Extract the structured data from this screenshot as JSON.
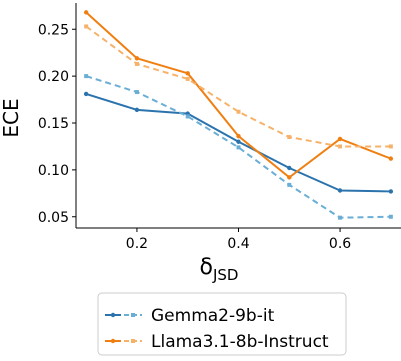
{
  "chart_data": {
    "type": "line",
    "ylabel": "ECE",
    "xlabel_main": "δ",
    "xlabel_sub": "JSD",
    "xlim": [
      0.08,
      0.72
    ],
    "ylim": [
      0.038,
      0.278
    ],
    "xticks": [
      0.2,
      0.4,
      0.6
    ],
    "xtick_labels": [
      "0.2",
      "0.4",
      "0.6"
    ],
    "yticks": [
      0.05,
      0.1,
      0.15,
      0.2,
      0.25
    ],
    "ytick_labels": [
      "0.05",
      "0.10",
      "0.15",
      "0.20",
      "0.25"
    ],
    "x": [
      0.1,
      0.2,
      0.3,
      0.4,
      0.5,
      0.6,
      0.7
    ],
    "series": [
      {
        "name": "Gemma2-9b-it (solid)",
        "color": "#2b73ad",
        "style": "solid",
        "values": [
          0.181,
          0.164,
          0.16,
          0.13,
          0.102,
          0.078,
          0.077
        ]
      },
      {
        "name": "Gemma2-9b-it (dashed)",
        "color": "#6aaed6",
        "style": "dashed",
        "values": [
          0.2,
          0.183,
          0.157,
          0.124,
          0.084,
          0.049,
          0.05
        ]
      },
      {
        "name": "Llama3.1-8b-Instruct (solid)",
        "color": "#f07f12",
        "style": "solid",
        "values": [
          0.268,
          0.219,
          0.203,
          0.136,
          0.092,
          0.133,
          0.112
        ]
      },
      {
        "name": "Llama3.1-8b-Instruct (dashed)",
        "color": "#f7b26a",
        "style": "dashed",
        "values": [
          0.253,
          0.213,
          0.197,
          0.162,
          0.135,
          0.125,
          0.125
        ]
      }
    ],
    "legend": [
      {
        "label": "Gemma2-9b-it",
        "solid_color": "#2b73ad",
        "dashed_color": "#6aaed6"
      },
      {
        "label": "Llama3.1-8b-Instruct",
        "solid_color": "#f07f12",
        "dashed_color": "#f7b26a"
      }
    ],
    "legend_position": "bottom-center"
  }
}
